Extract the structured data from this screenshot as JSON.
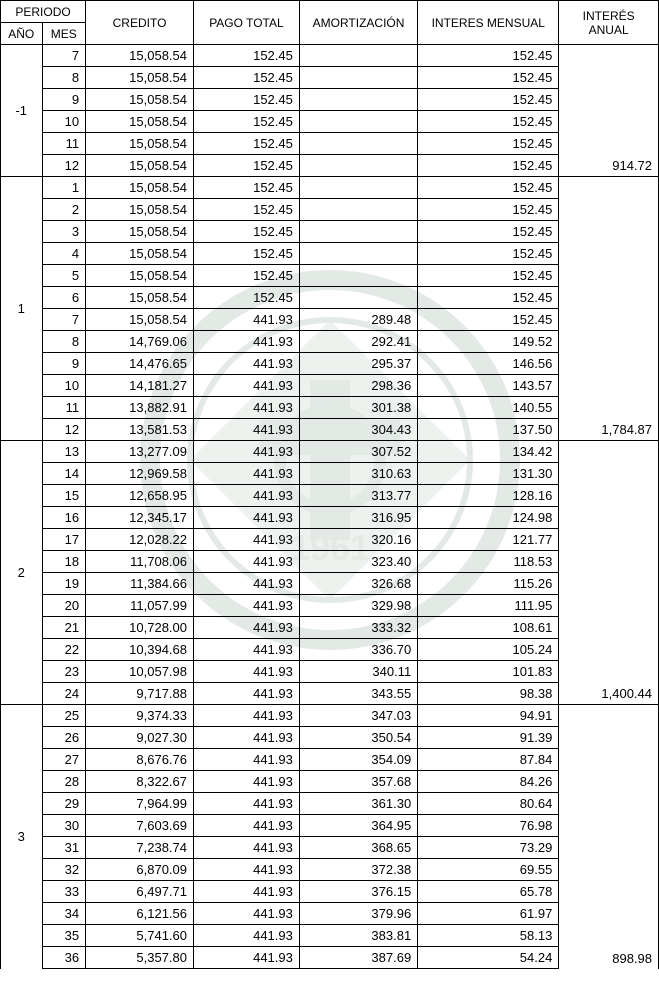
{
  "headers": {
    "periodo": "PERIODO",
    "ano": "AÑO",
    "mes": "MES",
    "credito": "CREDITO",
    "pago_total": "PAGO TOTAL",
    "amortizacion": "AMORTIZACIÓN",
    "interes_mensual": "INTERES MENSUAL",
    "interes_anual": "INTERÉS ANUAL"
  },
  "col_widths": {
    "ano": 40,
    "mes": 42,
    "credito": 104,
    "pago": 102,
    "amort": 114,
    "intmes": 136,
    "intanual": 96
  },
  "groups": [
    {
      "ano": "-1",
      "interes_anual": "914.72",
      "rows": [
        {
          "mes": "7",
          "credito": "15,058.54",
          "pago": "152.45",
          "amort": "",
          "intmes": "152.45"
        },
        {
          "mes": "8",
          "credito": "15,058.54",
          "pago": "152.45",
          "amort": "",
          "intmes": "152.45"
        },
        {
          "mes": "9",
          "credito": "15,058.54",
          "pago": "152.45",
          "amort": "",
          "intmes": "152.45"
        },
        {
          "mes": "10",
          "credito": "15,058.54",
          "pago": "152.45",
          "amort": "",
          "intmes": "152.45"
        },
        {
          "mes": "11",
          "credito": "15,058.54",
          "pago": "152.45",
          "amort": "",
          "intmes": "152.45"
        },
        {
          "mes": "12",
          "credito": "15,058.54",
          "pago": "152.45",
          "amort": "",
          "intmes": "152.45"
        }
      ]
    },
    {
      "ano": "1",
      "interes_anual": "1,784.87",
      "rows": [
        {
          "mes": "1",
          "credito": "15,058.54",
          "pago": "152.45",
          "amort": "",
          "intmes": "152.45"
        },
        {
          "mes": "2",
          "credito": "15,058.54",
          "pago": "152.45",
          "amort": "",
          "intmes": "152.45"
        },
        {
          "mes": "3",
          "credito": "15,058.54",
          "pago": "152.45",
          "amort": "",
          "intmes": "152.45"
        },
        {
          "mes": "4",
          "credito": "15,058.54",
          "pago": "152.45",
          "amort": "",
          "intmes": "152.45"
        },
        {
          "mes": "5",
          "credito": "15,058.54",
          "pago": "152.45",
          "amort": "",
          "intmes": "152.45"
        },
        {
          "mes": "6",
          "credito": "15,058.54",
          "pago": "152.45",
          "amort": "",
          "intmes": "152.45"
        },
        {
          "mes": "7",
          "credito": "15,058.54",
          "pago": "441.93",
          "amort": "289.48",
          "intmes": "152.45"
        },
        {
          "mes": "8",
          "credito": "14,769.06",
          "pago": "441.93",
          "amort": "292.41",
          "intmes": "149.52"
        },
        {
          "mes": "9",
          "credito": "14,476.65",
          "pago": "441.93",
          "amort": "295.37",
          "intmes": "146.56"
        },
        {
          "mes": "10",
          "credito": "14,181.27",
          "pago": "441.93",
          "amort": "298.36",
          "intmes": "143.57"
        },
        {
          "mes": "11",
          "credito": "13,882.91",
          "pago": "441.93",
          "amort": "301.38",
          "intmes": "140.55"
        },
        {
          "mes": "12",
          "credito": "13,581.53",
          "pago": "441.93",
          "amort": "304.43",
          "intmes": "137.50"
        }
      ]
    },
    {
      "ano": "2",
      "interes_anual": "1,400.44",
      "rows": [
        {
          "mes": "13",
          "credito": "13,277.09",
          "pago": "441.93",
          "amort": "307.52",
          "intmes": "134.42"
        },
        {
          "mes": "14",
          "credito": "12,969.58",
          "pago": "441.93",
          "amort": "310.63",
          "intmes": "131.30"
        },
        {
          "mes": "15",
          "credito": "12,658.95",
          "pago": "441.93",
          "amort": "313.77",
          "intmes": "128.16"
        },
        {
          "mes": "16",
          "credito": "12,345.17",
          "pago": "441.93",
          "amort": "316.95",
          "intmes": "124.98"
        },
        {
          "mes": "17",
          "credito": "12,028.22",
          "pago": "441.93",
          "amort": "320.16",
          "intmes": "121.77"
        },
        {
          "mes": "18",
          "credito": "11,708.06",
          "pago": "441.93",
          "amort": "323.40",
          "intmes": "118.53"
        },
        {
          "mes": "19",
          "credito": "11,384.66",
          "pago": "441.93",
          "amort": "326.68",
          "intmes": "115.26"
        },
        {
          "mes": "20",
          "credito": "11,057.99",
          "pago": "441.93",
          "amort": "329.98",
          "intmes": "111.95"
        },
        {
          "mes": "21",
          "credito": "10,728.00",
          "pago": "441.93",
          "amort": "333.32",
          "intmes": "108.61"
        },
        {
          "mes": "22",
          "credito": "10,394.68",
          "pago": "441.93",
          "amort": "336.70",
          "intmes": "105.24"
        },
        {
          "mes": "23",
          "credito": "10,057.98",
          "pago": "441.93",
          "amort": "340.11",
          "intmes": "101.83"
        },
        {
          "mes": "24",
          "credito": "9,717.88",
          "pago": "441.93",
          "amort": "343.55",
          "intmes": "98.38"
        }
      ]
    },
    {
      "ano": "3",
      "interes_anual": "898.98",
      "rows": [
        {
          "mes": "25",
          "credito": "9,374.33",
          "pago": "441.93",
          "amort": "347.03",
          "intmes": "94.91"
        },
        {
          "mes": "26",
          "credito": "9,027.30",
          "pago": "441.93",
          "amort": "350.54",
          "intmes": "91.39"
        },
        {
          "mes": "27",
          "credito": "8,676.76",
          "pago": "441.93",
          "amort": "354.09",
          "intmes": "87.84"
        },
        {
          "mes": "28",
          "credito": "8,322.67",
          "pago": "441.93",
          "amort": "357.68",
          "intmes": "84.26"
        },
        {
          "mes": "29",
          "credito": "7,964.99",
          "pago": "441.93",
          "amort": "361.30",
          "intmes": "80.64"
        },
        {
          "mes": "30",
          "credito": "7,603.69",
          "pago": "441.93",
          "amort": "364.95",
          "intmes": "76.98"
        },
        {
          "mes": "31",
          "credito": "7,238.74",
          "pago": "441.93",
          "amort": "368.65",
          "intmes": "73.29"
        },
        {
          "mes": "32",
          "credito": "6,870.09",
          "pago": "441.93",
          "amort": "372.38",
          "intmes": "69.55"
        },
        {
          "mes": "33",
          "credito": "6,497.71",
          "pago": "441.93",
          "amort": "376.15",
          "intmes": "65.78"
        },
        {
          "mes": "34",
          "credito": "6,121.56",
          "pago": "441.93",
          "amort": "379.96",
          "intmes": "61.97"
        },
        {
          "mes": "35",
          "credito": "5,741.60",
          "pago": "441.93",
          "amort": "383.81",
          "intmes": "58.13"
        },
        {
          "mes": "36",
          "credito": "5,357.80",
          "pago": "441.93",
          "amort": "387.69",
          "intmes": "54.24"
        }
      ]
    }
  ]
}
